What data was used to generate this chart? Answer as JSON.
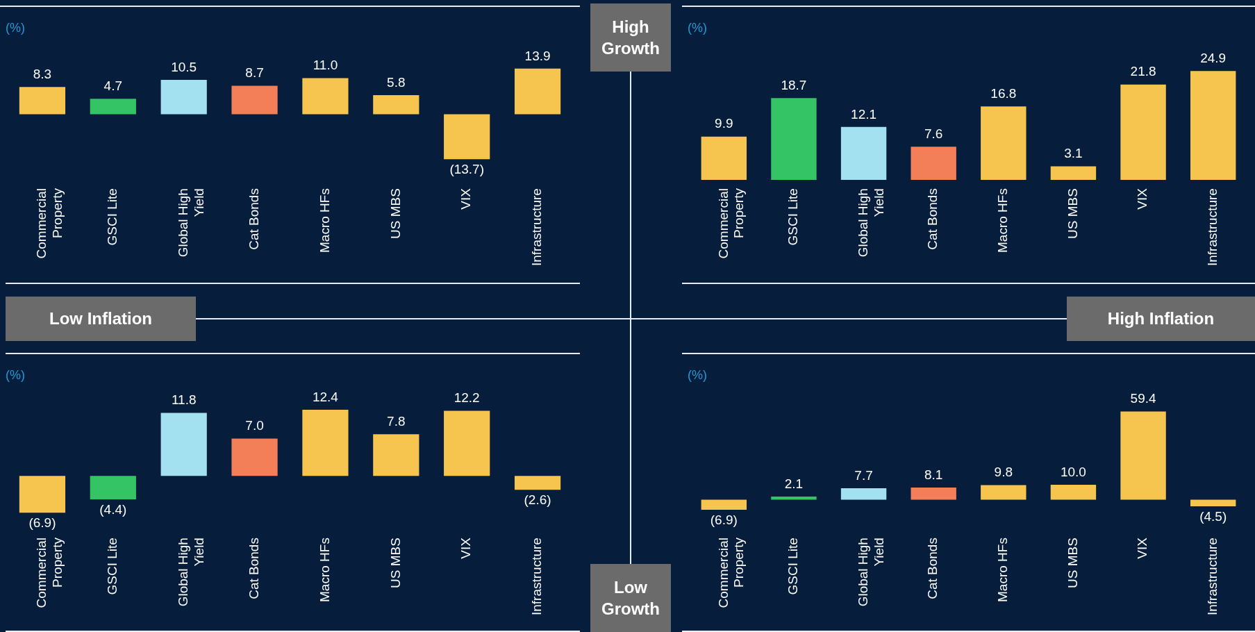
{
  "chart_data": [
    {
      "type": "bar",
      "ylabel": "(%)",
      "categories": [
        "Commercial Property",
        "GSCI Lite",
        "Global High Yield",
        "Cat Bonds",
        "Macro HFs",
        "US MBS",
        "VIX",
        "Infrastructure"
      ],
      "values": [
        8.3,
        4.7,
        10.5,
        8.7,
        11.0,
        5.8,
        -13.7,
        13.9
      ],
      "value_labels": [
        "8.3",
        "4.7",
        "10.5",
        "8.7",
        "11.0",
        "5.8",
        "(13.7)",
        "13.9"
      ],
      "colors": [
        "#f6c54f",
        "#34c465",
        "#a3e0f0",
        "#f27f57",
        "#f6c54f",
        "#f6c54f",
        "#f6c54f",
        "#f6c54f"
      ],
      "grid": false,
      "legend": false,
      "tick_labels": "x"
    },
    {
      "type": "bar",
      "ylabel": "(%)",
      "categories": [
        "Commercial Property",
        "GSCI Lite",
        "Global High Yield",
        "Cat Bonds",
        "Macro HFs",
        "US MBS",
        "VIX",
        "Infrastructure"
      ],
      "values": [
        9.9,
        18.7,
        12.1,
        7.6,
        16.8,
        3.1,
        21.8,
        24.9
      ],
      "value_labels": [
        "9.9",
        "18.7",
        "12.1",
        "7.6",
        "16.8",
        "3.1",
        "21.8",
        "24.9"
      ],
      "colors": [
        "#f6c54f",
        "#34c465",
        "#a3e0f0",
        "#f27f57",
        "#f6c54f",
        "#f6c54f",
        "#f6c54f",
        "#f6c54f"
      ],
      "grid": false,
      "legend": false,
      "tick_labels": "x"
    },
    {
      "type": "bar",
      "ylabel": "(%)",
      "categories": [
        "Commercial Property",
        "GSCI Lite",
        "Global High Yield",
        "Cat Bonds",
        "Macro HFs",
        "US MBS",
        "VIX",
        "Infrastructure"
      ],
      "values": [
        -6.9,
        -4.4,
        11.8,
        7.0,
        12.4,
        7.8,
        12.2,
        -2.6
      ],
      "value_labels": [
        "(6.9)",
        "(4.4)",
        "11.8",
        "7.0",
        "12.4",
        "7.8",
        "12.2",
        "(2.6)"
      ],
      "colors": [
        "#f6c54f",
        "#34c465",
        "#a3e0f0",
        "#f27f57",
        "#f6c54f",
        "#f6c54f",
        "#f6c54f",
        "#f6c54f"
      ],
      "grid": false,
      "legend": false,
      "tick_labels": "x"
    },
    {
      "type": "bar",
      "ylabel": "(%)",
      "categories": [
        "Commercial Property",
        "GSCI Lite",
        "Global High Yield",
        "Cat Bonds",
        "Macro HFs",
        "US MBS",
        "VIX",
        "Infrastructure"
      ],
      "values": [
        -6.9,
        2.1,
        7.7,
        8.1,
        9.8,
        10.0,
        59.4,
        -4.5
      ],
      "value_labels": [
        "(6.9)",
        "2.1",
        "7.7",
        "8.1",
        "9.8",
        "10.0",
        "59.4",
        "(4.5)"
      ],
      "colors": [
        "#f6c54f",
        "#34c465",
        "#a3e0f0",
        "#f27f57",
        "#f6c54f",
        "#f6c54f",
        "#f6c54f",
        "#f6c54f"
      ],
      "grid": false,
      "legend": false,
      "tick_labels": "x"
    },
    {
      "type": "other",
      "annotations": [
        "High Growth",
        "Low Growth",
        "Low Inflation",
        "High Inflation"
      ]
    }
  ]
}
